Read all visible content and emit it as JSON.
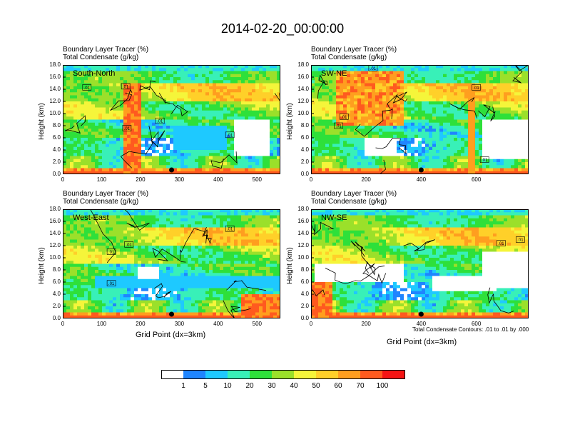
{
  "title": "2014-02-20_00:00:00",
  "panels": [
    {
      "id": "sn",
      "label": "South-North",
      "hdr1": "Boundary Layer Tracer   (%)",
      "hdr2": "Total Condensate   (g/kg)",
      "ylabel": "Height (km)",
      "xticks": [
        "0",
        "100",
        "200",
        "300",
        "400",
        "500"
      ],
      "xmax": 560,
      "dot": 280,
      "boxes": [
        {
          "x": 62,
          "y": 14.3,
          "t": ".01"
        },
        {
          "x": 162,
          "y": 14.5,
          "t": ".01"
        },
        {
          "x": 165,
          "y": 7.6,
          "t": ".01"
        },
        {
          "x": 250,
          "y": 8.8,
          "t": ".01"
        },
        {
          "x": 430,
          "y": 6.5,
          "t": ".01"
        }
      ]
    },
    {
      "id": "swne",
      "label": "SW-NE",
      "hdr1": "Boundary Layer Tracer   (%)",
      "hdr2": "Total Condensate   (g/kg)",
      "ylabel": "Height (km)",
      "xticks": [
        "0",
        "200",
        "400",
        "600"
      ],
      "xmax": 790,
      "dot": 400,
      "boxes": [
        {
          "x": 225,
          "y": 17.5,
          "t": ".01"
        },
        {
          "x": 120,
          "y": 9.5,
          "t": ".01"
        },
        {
          "x": 100,
          "y": 8,
          "t": ".01"
        },
        {
          "x": 600,
          "y": 14.3,
          "t": ".01"
        },
        {
          "x": 630,
          "y": 2.4,
          "t": ".01"
        }
      ]
    },
    {
      "id": "we",
      "label": "West-East",
      "hdr1": "Boundary Layer Tracer   (%)",
      "hdr2": "Total Condensate   (g/kg)",
      "ylabel": "Height (km)",
      "xticks": [
        "0",
        "100",
        "200",
        "300",
        "400",
        "500"
      ],
      "xmax": 560,
      "dot": 280,
      "boxes": [
        {
          "x": 170,
          "y": 12.2,
          "t": ".01"
        },
        {
          "x": 125,
          "y": 11,
          "t": ".01"
        },
        {
          "x": 125,
          "y": 5.8,
          "t": ".01"
        },
        {
          "x": 430,
          "y": 14.8,
          "t": ".01"
        }
      ]
    },
    {
      "id": "nwse",
      "label": "NW-SE",
      "hdr1": "Boundary Layer Tracer   (%)",
      "hdr2": "Total Condensate   (g/kg)",
      "ylabel": "Height (km)",
      "xticks": [
        "0",
        "200",
        "400",
        "600"
      ],
      "xmax": 790,
      "dot": 400,
      "boxes": [
        {
          "x": 690,
          "y": 12.4,
          "t": ".01"
        },
        {
          "x": 760,
          "y": 13,
          "t": ".01"
        }
      ]
    }
  ],
  "yticks": [
    "0.0",
    "2.0",
    "4.0",
    "6.0",
    "8.0",
    "10.0",
    "12.0",
    "14.0",
    "16.0",
    "18.0"
  ],
  "xlabel": "Grid Point (dx=3km)",
  "contour_note": "Total Condensate Contours: .01 to .01 by .000",
  "colorbar": {
    "colors": [
      "#ffffff",
      "#1f85ff",
      "#1ec9ff",
      "#38f0b8",
      "#2ee03a",
      "#9be02a",
      "#f5f53a",
      "#ffd029",
      "#ff9e1f",
      "#ff5a1f",
      "#f51414"
    ],
    "labels": [
      "1",
      "5",
      "10",
      "20",
      "30",
      "40",
      "50",
      "60",
      "70",
      "100"
    ]
  },
  "chart_data": {
    "type": "heatmap",
    "title": "2014-02-20_00:00:00",
    "variables": [
      "Boundary Layer Tracer (%)",
      "Total Condensate (g/kg)"
    ],
    "ylabel": "Height (km)",
    "ylim": [
      0,
      18
    ],
    "xlabel": "Grid Point (dx=3km)",
    "color_levels": [
      1,
      5,
      10,
      20,
      30,
      40,
      50,
      60,
      70,
      100
    ],
    "panels": [
      {
        "name": "South-North",
        "xlim": [
          0,
          560
        ]
      },
      {
        "name": "SW-NE",
        "xlim": [
          0,
          790
        ]
      },
      {
        "name": "West-East",
        "xlim": [
          0,
          560
        ]
      },
      {
        "name": "NW-SE",
        "xlim": [
          0,
          790
        ]
      }
    ],
    "contour": "Total Condensate Contours: .01 to .01 by .000"
  }
}
